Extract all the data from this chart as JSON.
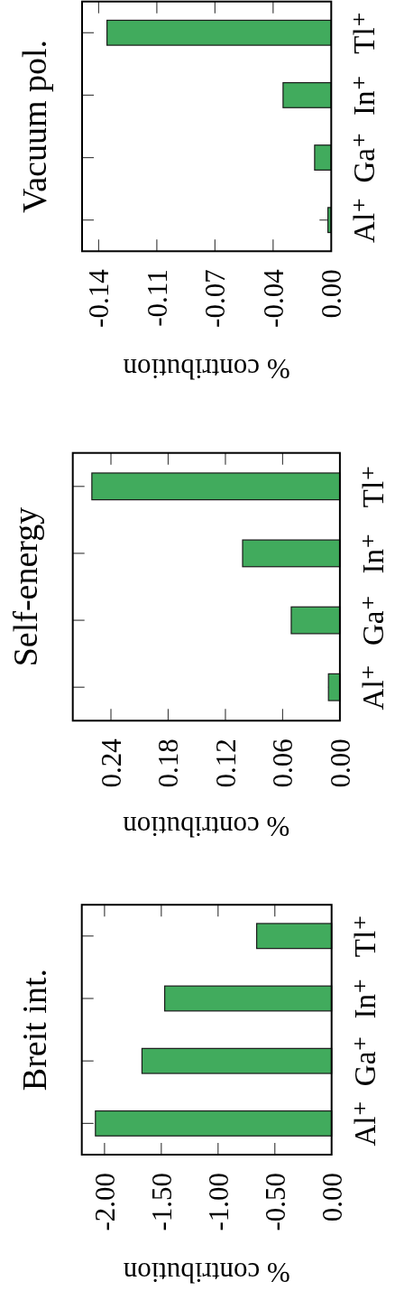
{
  "chart_data": [
    {
      "type": "bar",
      "orientation": "horizontal",
      "title": "Vacuum pol.",
      "xlabel": "% contribution",
      "categories": [
        "Tl⁺",
        "In⁺",
        "Ga⁺",
        "Al⁺"
      ],
      "values": [
        -0.135,
        -0.029,
        -0.01,
        -0.002
      ],
      "color": "#41ab5d",
      "xlim": [
        -0.15,
        0
      ],
      "xticks": [
        {
          "value": -0.14,
          "label": "-0.14"
        },
        {
          "value": -0.105,
          "label": "-0.11"
        },
        {
          "value": -0.07,
          "label": "-0.07"
        },
        {
          "value": -0.035,
          "label": "-0.04"
        },
        {
          "value": 0,
          "label": "0.00"
        }
      ]
    },
    {
      "type": "bar",
      "orientation": "horizontal",
      "title": "Self-energy",
      "xlabel": "% contribution",
      "categories": [
        "Tl⁺",
        "In⁺",
        "Ga⁺",
        "Al⁺"
      ],
      "values": [
        0.26,
        0.102,
        0.051,
        0.012
      ],
      "color": "#41ab5d",
      "xlim": [
        0.28,
        0
      ],
      "xticks": [
        {
          "value": 0.24,
          "label": "0.24"
        },
        {
          "value": 0.18,
          "label": "0.18"
        },
        {
          "value": 0.12,
          "label": "0.12"
        },
        {
          "value": 0.06,
          "label": "0.06"
        },
        {
          "value": 0,
          "label": "0.00"
        }
      ]
    },
    {
      "type": "bar",
      "orientation": "horizontal",
      "title": "Breit int.",
      "xlabel": "% contribution",
      "categories": [
        "Tl⁺",
        "In⁺",
        "Ga⁺",
        "Al⁺"
      ],
      "values": [
        -0.66,
        -1.47,
        -1.67,
        -2.08
      ],
      "color": "#41ab5d",
      "xlim": [
        -2.2,
        0
      ],
      "xticks": [
        {
          "value": -2,
          "label": "-2.00"
        },
        {
          "value": -1.5,
          "label": "-1.50"
        },
        {
          "value": -1,
          "label": "-1.00"
        },
        {
          "value": -0.5,
          "label": "-0.50"
        },
        {
          "value": 0,
          "label": "0.00"
        }
      ]
    }
  ]
}
